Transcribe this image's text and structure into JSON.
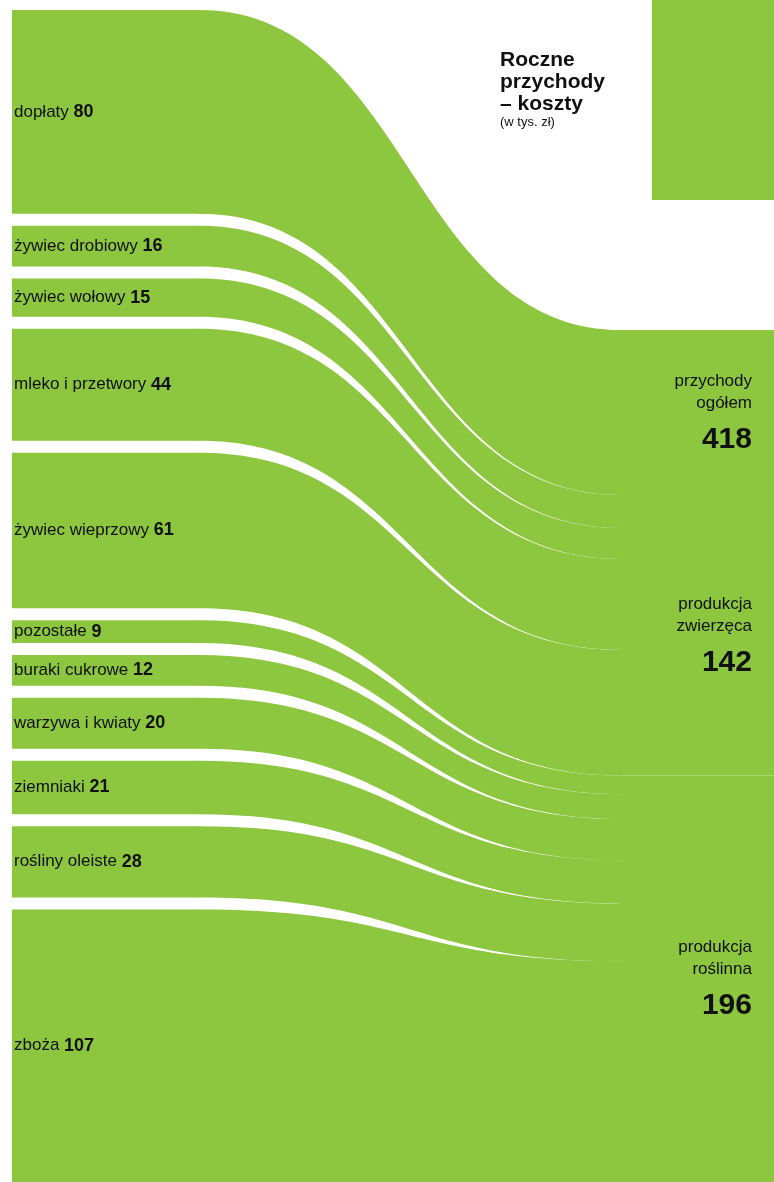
{
  "chart_data": {
    "type": "other",
    "title": "Roczne przychody – koszty",
    "subtitle": "(w tys. zł)",
    "categories": [
      "dopłaty",
      "żywiec drobiowy",
      "żywiec wołowy",
      "mleko i przetwory",
      "żywiec wieprzowy",
      "pozostałe",
      "buraki cukrowe",
      "warzywa i kwiaty",
      "ziemniaki",
      "rośliny oleiste",
      "zboża"
    ],
    "data_labels": true,
    "series": [
      {
        "color": "#8dc63f",
        "values": [
          80,
          null,
          null,
          null,
          null,
          null,
          null,
          null,
          null,
          null,
          null
        ]
      },
      {
        "color": "#8dc63f",
        "values": [
          null,
          16,
          15,
          44,
          61,
          null,
          null,
          null,
          null,
          null,
          null
        ]
      },
      {
        "color": "#8dc63f",
        "values": [
          null,
          null,
          null,
          null,
          null,
          9,
          12,
          20,
          21,
          28,
          107
        ]
      }
    ],
    "annotations": [
      "przychody ogółem",
      "produkcja zwierzęca",
      "produkcja roślinna"
    ],
    "totals": [
      "418",
      "142",
      "196"
    ]
  }
}
